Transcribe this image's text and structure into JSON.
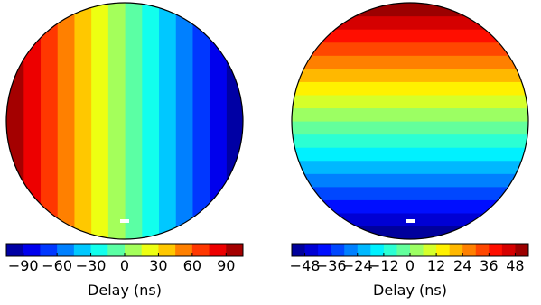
{
  "chart_data": [
    {
      "type": "heatmap",
      "title": "",
      "colormap": "jet",
      "gradient_direction": "horizontal",
      "gradient_orientation": "values decrease from left edge to right edge",
      "levels": [
        -105,
        -90,
        -75,
        -60,
        -45,
        -30,
        -15,
        0,
        15,
        30,
        45,
        60,
        75,
        90,
        105
      ],
      "colorbar": {
        "label": "Delay (ns)",
        "ticks": [
          -90,
          -60,
          -30,
          0,
          30,
          60,
          90
        ],
        "tick_labels": [
          "−90",
          "−60",
          "−30",
          "0",
          "30",
          "60",
          "90"
        ],
        "range": [
          -105,
          105
        ]
      },
      "marker": "white rectangle near lower center"
    },
    {
      "type": "heatmap",
      "title": "",
      "colormap": "jet",
      "gradient_direction": "vertical",
      "gradient_orientation": "values increase from bottom edge to top edge",
      "levels": [
        -54,
        -48,
        -42,
        -36,
        -30,
        -24,
        -18,
        -12,
        -6,
        0,
        6,
        12,
        18,
        24,
        30,
        36,
        42,
        48,
        54
      ],
      "colorbar": {
        "label": "Delay (ns)",
        "ticks": [
          -48,
          -36,
          -24,
          -12,
          0,
          12,
          24,
          36,
          48
        ],
        "tick_labels": [
          "−48",
          "−36",
          "−24",
          "−12",
          "0",
          "12",
          "24",
          "36",
          "48"
        ],
        "range": [
          -54,
          54
        ]
      },
      "marker": "white rectangle near lower center"
    }
  ]
}
